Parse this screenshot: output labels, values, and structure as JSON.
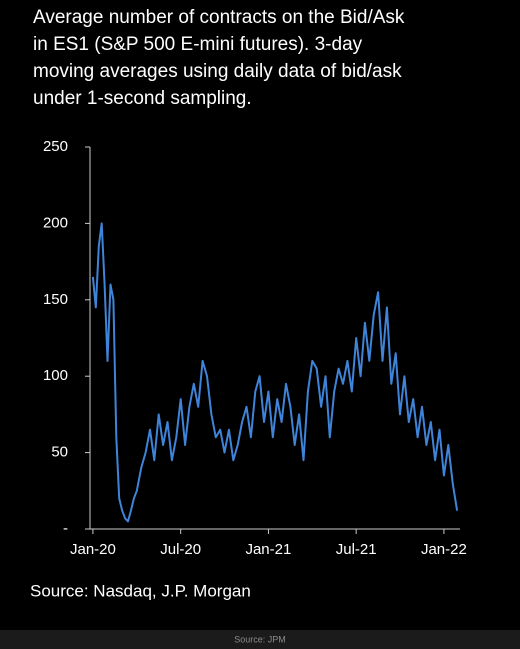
{
  "chart_data": {
    "type": "line",
    "title": [
      "Average number of contracts on the Bid/Ask",
      "in ES1 (S&P 500 E-mini futures). 3-day",
      "moving averages using daily data of bid/ask",
      "under 1-second sampling."
    ],
    "source": "Source: Nasdaq, J.P. Morgan",
    "caption": "Source: JPM",
    "x": [
      0,
      0.2,
      0.4,
      0.6,
      0.8,
      1.0,
      1.2,
      1.4,
      1.6,
      1.8,
      2.0,
      2.2,
      2.4,
      2.6,
      2.8,
      3.0,
      3.3,
      3.6,
      3.9,
      4.2,
      4.5,
      4.8,
      5.1,
      5.4,
      5.7,
      6.0,
      6.3,
      6.6,
      6.9,
      7.2,
      7.5,
      7.8,
      8.1,
      8.4,
      8.7,
      9.0,
      9.3,
      9.6,
      9.9,
      10.2,
      10.5,
      10.8,
      11.1,
      11.4,
      11.7,
      12.0,
      12.3,
      12.6,
      12.9,
      13.2,
      13.5,
      13.8,
      14.1,
      14.4,
      14.7,
      15.0,
      15.3,
      15.6,
      15.9,
      16.2,
      16.5,
      16.8,
      17.1,
      17.4,
      17.7,
      18.0,
      18.3,
      18.6,
      18.9,
      19.2,
      19.5,
      19.8,
      20.1,
      20.4,
      20.7,
      21.0,
      21.3,
      21.6,
      21.9,
      22.2,
      22.5,
      22.8,
      23.1,
      23.4,
      23.7,
      24.0,
      24.3,
      24.6,
      24.9
    ],
    "series": [
      {
        "color": "#3f84d8",
        "values": [
          165,
          145,
          185,
          200,
          160,
          110,
          160,
          150,
          60,
          20,
          12,
          7,
          5,
          12,
          20,
          25,
          40,
          50,
          65,
          45,
          75,
          55,
          70,
          45,
          60,
          85,
          55,
          80,
          95,
          80,
          110,
          100,
          75,
          60,
          65,
          50,
          65,
          45,
          55,
          70,
          80,
          60,
          90,
          100,
          70,
          90,
          60,
          85,
          70,
          95,
          80,
          55,
          75,
          45,
          90,
          110,
          105,
          80,
          100,
          60,
          90,
          105,
          95,
          110,
          90,
          125,
          100,
          135,
          110,
          140,
          155,
          110,
          145,
          95,
          115,
          75,
          100,
          70,
          85,
          60,
          80,
          55,
          70,
          45,
          65,
          35,
          55,
          30,
          12
        ]
      }
    ],
    "xlim": [
      -0.2,
      25.1
    ],
    "xticks": [
      {
        "value": 0,
        "label": "Jan-20"
      },
      {
        "value": 6,
        "label": "Jul-20"
      },
      {
        "value": 12,
        "label": "Jan-21"
      },
      {
        "value": 18,
        "label": "Jul-21"
      },
      {
        "value": 24,
        "label": "Jan-22"
      }
    ],
    "ylim": [
      0,
      250
    ],
    "yticks": [
      {
        "value": 0,
        "label": "-"
      },
      50,
      100,
      150,
      200,
      250
    ]
  }
}
